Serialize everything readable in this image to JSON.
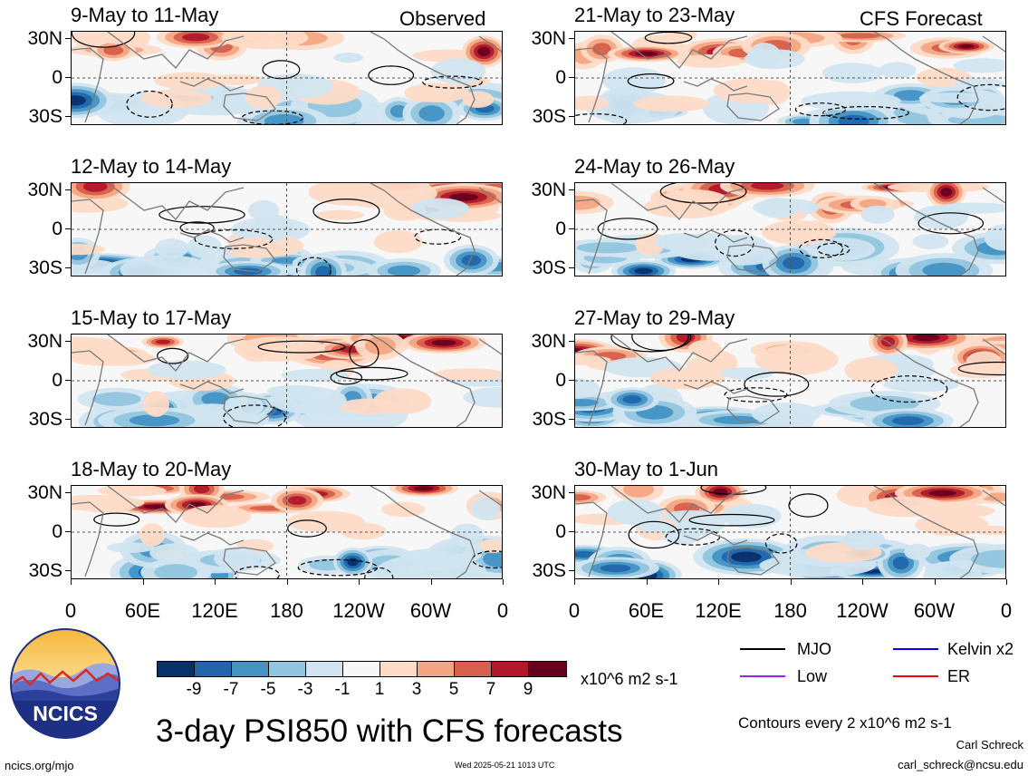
{
  "main_title": "3-day PSI850 with CFS forecasts",
  "tags": {
    "observed": "Observed",
    "forecast": "CFS Forecast"
  },
  "footer": {
    "site": "ncics.org/mjo",
    "timestamp": "Wed 2025-05-21 1013 UTC",
    "author": "Carl Schreck",
    "email": "carl_schreck@ncsu.edu"
  },
  "logo_text": "NCICS",
  "contour_note": "Contours every 2 x10^6 m2 s-1",
  "colorbar": {
    "units": "x10^6 m2 s-1",
    "labels": [
      "-9",
      "-7",
      "-5",
      "-3",
      "-1",
      "1",
      "3",
      "5",
      "7",
      "9"
    ],
    "colors": [
      "#08306b",
      "#2166ac",
      "#4393c3",
      "#92c5de",
      "#d1e5f0",
      "#f7f7f7",
      "#fddbc7",
      "#f4a582",
      "#d6604d",
      "#b2182b",
      "#67001f"
    ]
  },
  "legend": [
    {
      "label": "MJO",
      "color": "#000000"
    },
    {
      "label": "Kelvin x2",
      "color": "#0000ff"
    },
    {
      "label": "Low",
      "color": "#a020f0"
    },
    {
      "label": "ER",
      "color": "#ff0000"
    }
  ],
  "chart_data": {
    "type": "heatmap",
    "variable": "PSI850",
    "lat_ticks": [
      "30N",
      "0",
      "30S"
    ],
    "lon_ticks": [
      "0",
      "60E",
      "120E",
      "180",
      "120W",
      "60W",
      "0"
    ],
    "observed_panels": [
      {
        "title": "9-May to 11-May"
      },
      {
        "title": "12-May to 14-May"
      },
      {
        "title": "15-May to 17-May"
      },
      {
        "title": "18-May to 20-May"
      }
    ],
    "forecast_panels": [
      {
        "title": "21-May to 23-May"
      },
      {
        "title": "24-May to 26-May"
      },
      {
        "title": "27-May to 29-May"
      },
      {
        "title": "30-May to 1-Jun"
      }
    ]
  }
}
